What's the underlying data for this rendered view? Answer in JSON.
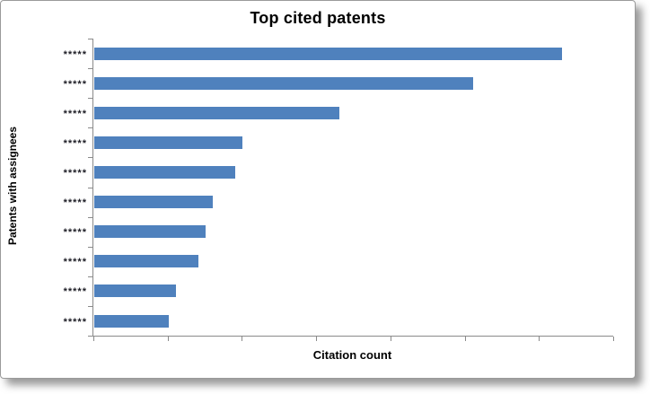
{
  "chart_data": {
    "type": "bar",
    "orientation": "horizontal",
    "title": "Top cited patents",
    "xlabel": "Citation count",
    "ylabel": "Patents with assignees",
    "categories": [
      "*****",
      "*****",
      "*****",
      "*****",
      "*****",
      "*****",
      "*****",
      "*****",
      "*****",
      "*****"
    ],
    "values": [
      6.3,
      5.1,
      3.3,
      2.0,
      1.9,
      1.6,
      1.5,
      1.4,
      1.1,
      1.0
    ],
    "value_units": "relative units; 1 unit = one x-axis tick interval (tick labels not shown in chart)",
    "xlim": [
      0,
      7
    ],
    "x_tick_count": 8,
    "x_tick_labels_visible": false,
    "y_category_tick_count": 11,
    "grid": false,
    "legend": false,
    "bar_color": "#4F81BD",
    "axis_color": "#8a8a8a"
  }
}
